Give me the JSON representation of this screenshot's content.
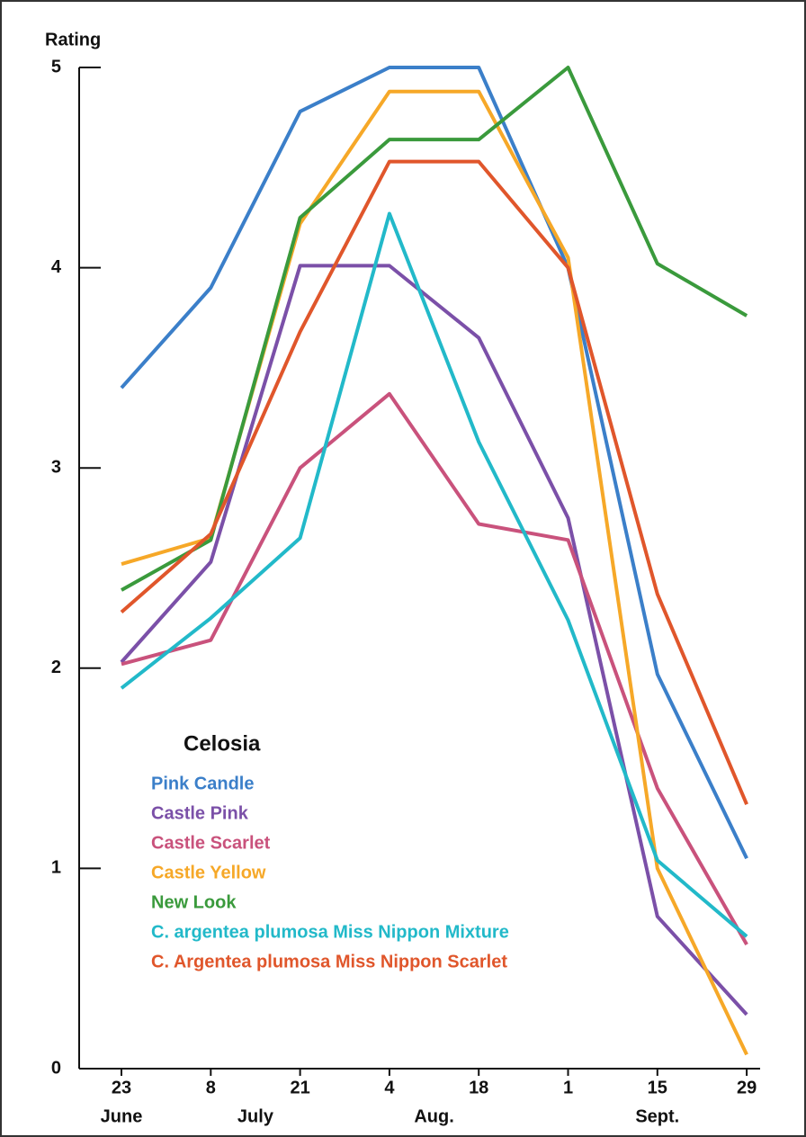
{
  "chart_data": {
    "type": "line",
    "y_label": "Rating",
    "legend_title": "Celosia",
    "categories": [
      "23",
      "8",
      "21",
      "4",
      "18",
      "1",
      "15",
      "29"
    ],
    "x_groups": [
      {
        "label": "June",
        "from": 0,
        "to": 0
      },
      {
        "label": "July",
        "from": 1,
        "to": 2
      },
      {
        "label": "Aug.",
        "from": 3,
        "to": 4
      },
      {
        "label": "Sept.",
        "from": 5,
        "to": 7
      }
    ],
    "ylim": [
      0,
      5
    ],
    "yticks": [
      0,
      1,
      2,
      3,
      4,
      5
    ],
    "legend": "lower left",
    "series": [
      {
        "name": "Pink Candle",
        "color": "#3b7fc9",
        "values": [
          3.4,
          3.9,
          4.78,
          5,
          5,
          4.0,
          1.97,
          1.05
        ]
      },
      {
        "name": "Castle Pink",
        "color": "#7b50a8",
        "values": [
          2.03,
          2.53,
          4.01,
          4.01,
          3.65,
          2.75,
          0.76,
          0.27
        ]
      },
      {
        "name": "Castle Scarlet",
        "color": "#c9527c",
        "values": [
          2.02,
          2.14,
          3.0,
          3.37,
          2.72,
          2.64,
          1.4,
          0.62
        ]
      },
      {
        "name": "Castle Yellow",
        "color": "#f6a828",
        "values": [
          2.52,
          2.65,
          4.22,
          4.88,
          4.88,
          4.05,
          1.0,
          0.07
        ]
      },
      {
        "name": "New Look",
        "color": "#3a9a3c",
        "values": [
          2.39,
          2.64,
          4.25,
          4.64,
          4.64,
          5.0,
          4.02,
          3.76
        ]
      },
      {
        "name": "C. argentea plumosa Miss Nippon Mixture",
        "color": "#22b9c9",
        "values": [
          1.9,
          2.25,
          2.65,
          4.27,
          3.13,
          2.24,
          1.04,
          0.66
        ]
      },
      {
        "name": "C. Argentea plumosa Miss Nippon Scarlet",
        "color": "#e0562b",
        "values": [
          2.28,
          2.67,
          3.68,
          4.53,
          4.53,
          4.0,
          2.37,
          1.32
        ]
      }
    ]
  }
}
